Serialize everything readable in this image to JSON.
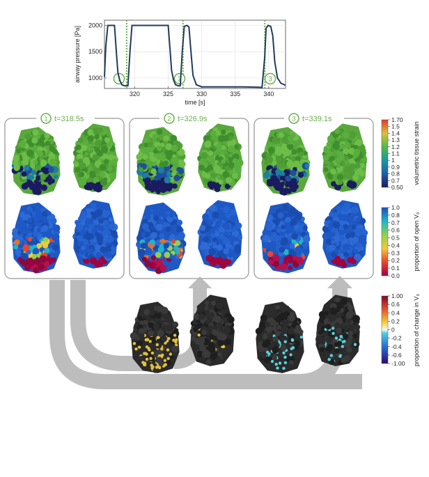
{
  "chart_data": {
    "type": "line",
    "title": "",
    "xlabel": "time [s]",
    "ylabel": "airway pressure [Pa]",
    "xlim": [
      315.5,
      342.5
    ],
    "ylim": [
      800,
      2100
    ],
    "xticks": [
      320,
      325,
      330,
      335,
      340
    ],
    "yticks": [
      1000,
      1500,
      2000
    ],
    "grid": true,
    "series": [
      {
        "name": "airway pressure",
        "color": "#1f3b5c",
        "x": [
          315.5,
          315.7,
          316.0,
          317.0,
          317.3,
          317.5,
          317.8,
          318.1,
          318.5,
          319.0,
          319.3,
          319.6,
          320.0,
          321.0,
          322.0,
          323.0,
          324.0,
          325.0,
          325.3,
          325.5,
          325.8,
          326.1,
          326.5,
          326.8,
          327.1,
          327.4,
          327.8,
          328.1,
          328.4,
          328.7,
          329.2,
          330.0,
          332.0,
          334.0,
          336.0,
          338.0,
          339.0,
          339.4,
          339.6,
          339.9,
          340.3,
          340.6,
          340.9,
          341.3,
          341.8,
          342.5
        ],
        "y": [
          1020,
          1600,
          2000,
          2000,
          1450,
          1100,
          950,
          870,
          850,
          850,
          1500,
          2000,
          2000,
          2000,
          2000,
          2000,
          2000,
          2000,
          1500,
          1150,
          960,
          870,
          850,
          850,
          1500,
          1980,
          2000,
          1970,
          1500,
          1050,
          870,
          830,
          830,
          830,
          830,
          825,
          820,
          1400,
          1950,
          2000,
          1980,
          1800,
          1300,
          1000,
          900,
          860
        ]
      }
    ],
    "event_markers": [
      {
        "label": "1",
        "time": 318.5
      },
      {
        "label": "2",
        "time": 326.9
      },
      {
        "label": "3",
        "time": 339.1
      }
    ],
    "marker_color": "#6ab04c"
  },
  "snapshots": [
    {
      "index": "1",
      "label": "t=318.5s"
    },
    {
      "index": "2",
      "label": "t=326.9s"
    },
    {
      "index": "3",
      "label": "t=339.1s"
    }
  ],
  "colorbars": [
    {
      "name": "volumetric tissue strain",
      "ticks": [
        "1.70",
        "1.5",
        "1.4",
        "1.3",
        "1.2",
        "1.1",
        "1",
        "0.9",
        "0.8",
        "0.7",
        "0.50"
      ]
    },
    {
      "name": "proportion of open V₀",
      "ticks": [
        "1.0",
        "0.8",
        "0.7",
        "0.6",
        "0.5",
        "0.4",
        "0.3",
        "0.2",
        "0.1",
        "0.0"
      ]
    },
    {
      "name": "proportion of change in V₀",
      "ticks": [
        "1.00",
        "0.6",
        "0.4",
        "0.2",
        "0",
        "-0.2",
        "-0.4",
        "-0.6",
        "-1.00"
      ]
    }
  ],
  "colors": {
    "accent": "#6ab04c",
    "line": "#1f3b5c",
    "frame": "#a9a9a9",
    "arrow": "#b7b7b7"
  }
}
